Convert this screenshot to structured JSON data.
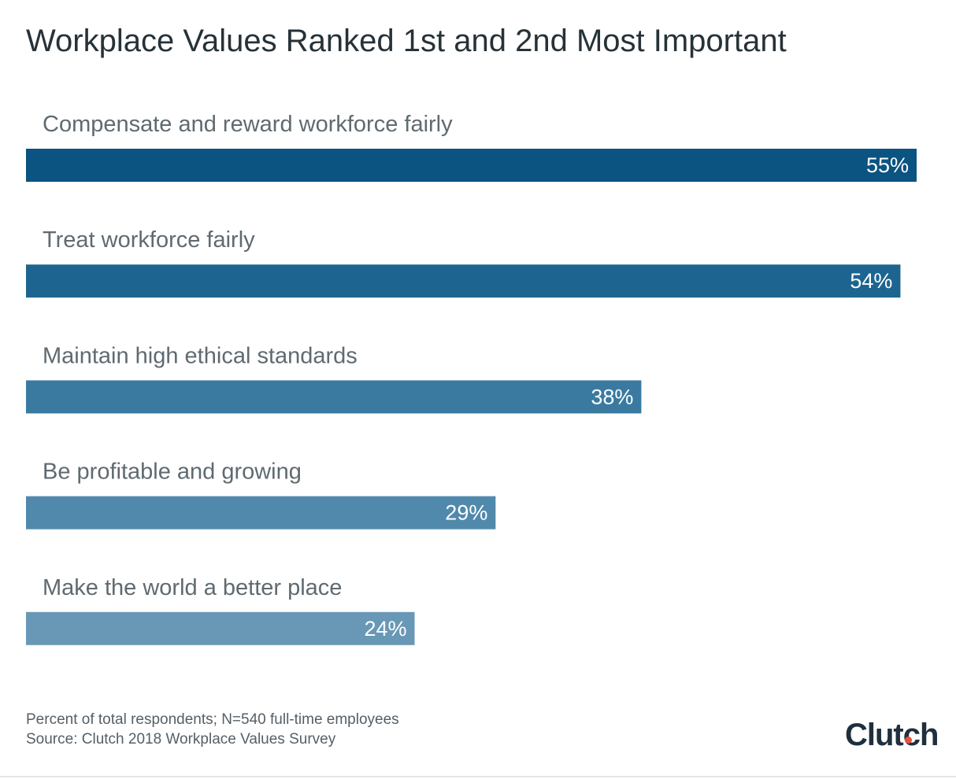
{
  "title": "Workplace Values Ranked 1st and 2nd Most Important",
  "chart_data": {
    "type": "bar",
    "orientation": "horizontal",
    "title": "Workplace Values Ranked 1st and 2nd Most Important",
    "categories": [
      "Compensate and reward workforce fairly",
      "Treat workforce fairly",
      "Maintain high ethical standards",
      "Be profitable and growing",
      "Make the world a better place"
    ],
    "values": [
      55,
      54,
      38,
      29,
      24
    ],
    "value_labels": [
      "55%",
      "54%",
      "38%",
      "29%",
      "24%"
    ],
    "bar_colors": [
      "#0b5380",
      "#1d6590",
      "#3a7aa0",
      "#5189ac",
      "#6898b6"
    ],
    "unit": "%",
    "grid": false,
    "legend": "none"
  },
  "footnote": {
    "line1": "Percent of total respondents; N=540 full-time employees",
    "line2": "Source: Clutch 2018 Workplace Values Survey"
  },
  "logo": {
    "text": "Clutch",
    "dot_color": "#e6533c"
  }
}
